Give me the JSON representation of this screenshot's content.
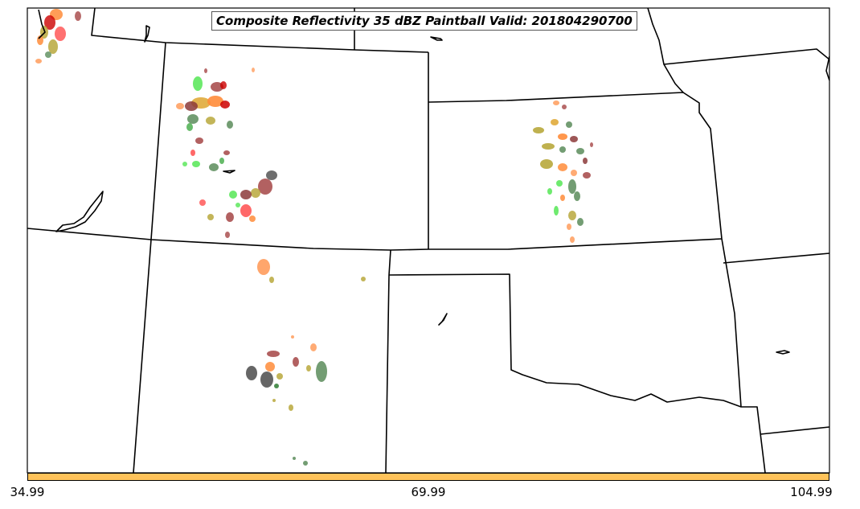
{
  "title": "Composite Reflectivity 35 dBZ Paintball Valid: 201804290700",
  "colorbar": {
    "color": "#ffc35a",
    "ticks": [
      "34.99",
      "69.99",
      "104.99"
    ]
  },
  "colors": {
    "land_border": "#000000",
    "paint": [
      "#ff4d4d",
      "#ff8c3a",
      "#ff9c5c",
      "#e0ab3c",
      "#b8a83c",
      "#8c3a3a",
      "#a54545",
      "#4caf50",
      "#5ee85e",
      "#5a8c5a",
      "#2e7d32",
      "#555555",
      "#cc0000"
    ]
  }
}
